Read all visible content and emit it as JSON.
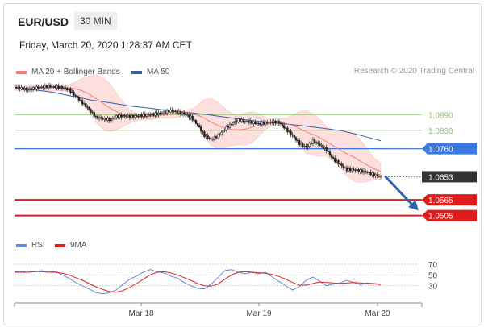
{
  "header": {
    "pair": "EUR/USD",
    "timeframe": "30 MIN",
    "datetime": "Friday, March 20, 2020 1:28:37 AM CET"
  },
  "legend": {
    "ma20": "MA 20 + Bollinger Bands",
    "ma50": "MA 50",
    "rsi": "RSI",
    "ma9": "9MA",
    "research": "Research © 2020 Trading Central"
  },
  "colors": {
    "ma20": "#f08080",
    "ma50": "#3a5ea8",
    "band": "#fde0de",
    "candle": "#222222",
    "green": "#8dc26f",
    "blue": "#3a79e0",
    "red": "#e11b1b",
    "dark": "#333333",
    "arrow": "#2f64b0",
    "rsi": "#6688dd",
    "rsi_ma": "#e02020"
  },
  "chart_data": [
    {
      "type": "candlestick",
      "title": "EUR/USD 30 MIN",
      "x_tick_labels": [
        "Mar 18",
        "Mar 19",
        "Mar 20"
      ],
      "y_range": [
        1.043,
        1.102
      ],
      "levels": [
        {
          "label": "1.0890",
          "value": 1.089,
          "style": "green"
        },
        {
          "label": "1.0830",
          "value": 1.083,
          "style": "green"
        },
        {
          "label": "1.0760",
          "value": 1.076,
          "style": "blue"
        },
        {
          "label": "1.0653",
          "value": 1.0653,
          "style": "dark"
        },
        {
          "label": "1.0565",
          "value": 1.0565,
          "style": "red"
        },
        {
          "label": "1.0505",
          "value": 1.0505,
          "style": "red"
        }
      ],
      "close_path": [
        1.0995,
        1.099,
        1.0985,
        1.0992,
        1.0995,
        1.0998,
        1.0996,
        1.0993,
        1.0985,
        1.096,
        1.0935,
        1.091,
        1.088,
        1.0875,
        1.087,
        1.0883,
        1.0885,
        1.0883,
        1.0885,
        1.0887,
        1.089,
        1.0893,
        1.0898,
        1.0905,
        1.09,
        1.0892,
        1.088,
        1.085,
        1.081,
        1.0795,
        1.081,
        1.0835,
        1.0855,
        1.087,
        1.0865,
        1.086,
        1.0855,
        1.0858,
        1.0862,
        1.086,
        1.0835,
        1.081,
        1.078,
        1.0765,
        1.079,
        1.0775,
        1.0755,
        1.072,
        1.07,
        1.068,
        1.068,
        1.0675,
        1.067,
        1.066,
        1.0653
      ],
      "ma50_path": [
        1.099,
        1.0985,
        1.0975,
        1.096,
        1.0945,
        1.0935,
        1.0923,
        1.0915,
        1.0905,
        1.0898,
        1.089,
        1.088,
        1.087,
        1.0862,
        1.0855,
        1.0847,
        1.0838,
        1.0828,
        1.081,
        1.079
      ],
      "forecast_arrow": {
        "from": 1.0653,
        "to": 1.054
      }
    },
    {
      "type": "line",
      "title": "RSI",
      "y_tick_labels": [
        "70",
        "50",
        "30"
      ],
      "y_ticks": [
        70,
        50,
        30
      ],
      "y_range": [
        10,
        85
      ],
      "series": [
        {
          "name": "RSI",
          "values": [
            56,
            57,
            55,
            56,
            58,
            55,
            57,
            50,
            44,
            36,
            30,
            24,
            17,
            15,
            17,
            22,
            33,
            42,
            48,
            55,
            60,
            56,
            54,
            48,
            44,
            36,
            30,
            25,
            24,
            33,
            45,
            58,
            60,
            55,
            52,
            55,
            52,
            55,
            46,
            38,
            30,
            22,
            28,
            40,
            46,
            38,
            30,
            33,
            35,
            40,
            36,
            32,
            35,
            34,
            31
          ]
        },
        {
          "name": "9MA",
          "values": [
            55,
            55,
            55,
            56,
            56,
            55,
            55,
            53,
            50,
            45,
            40,
            34,
            28,
            23,
            19,
            18,
            21,
            27,
            34,
            42,
            50,
            55,
            56,
            54,
            50,
            45,
            40,
            34,
            30,
            29,
            33,
            42,
            50,
            55,
            56,
            55,
            54,
            53,
            51,
            47,
            42,
            36,
            31,
            31,
            34,
            37,
            36,
            35,
            34,
            35,
            36,
            35,
            34,
            34,
            33
          ]
        }
      ]
    }
  ]
}
